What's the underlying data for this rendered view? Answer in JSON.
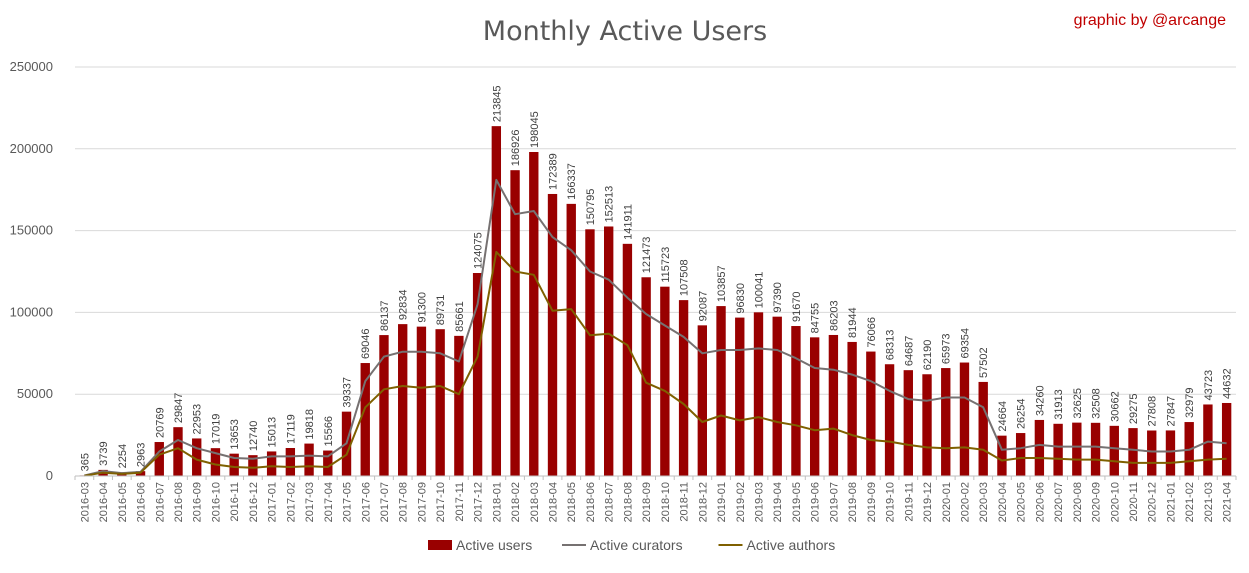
{
  "credit": "graphic by @arcange",
  "chart_data": {
    "type": "bar",
    "title": "Monthly Active Users",
    "xlabel": "",
    "ylabel": "",
    "ylim": [
      0,
      250000
    ],
    "yticks": [
      0,
      50000,
      100000,
      150000,
      200000,
      250000
    ],
    "ytick_labels": [
      "0",
      "50000",
      "100000",
      "150000",
      "200000",
      "250000"
    ],
    "grid": true,
    "legend_position": "bottom",
    "colors": {
      "Active users": "#990000",
      "Active curators": "#767171",
      "Active authors": "#7f6000"
    },
    "categories": [
      "2016-03",
      "2016-04",
      "2016-05",
      "2016-06",
      "2016-07",
      "2016-08",
      "2016-09",
      "2016-10",
      "2016-11",
      "2016-12",
      "2017-01",
      "2017-02",
      "2017-03",
      "2017-04",
      "2017-05",
      "2017-06",
      "2017-07",
      "2017-08",
      "2017-09",
      "2017-10",
      "2017-11",
      "2017-12",
      "2018-01",
      "2018-02",
      "2018-03",
      "2018-04",
      "2018-05",
      "2018-06",
      "2018-07",
      "2018-08",
      "2018-09",
      "2018-10",
      "2018-11",
      "2018-12",
      "2019-01",
      "2019-02",
      "2019-03",
      "2019-04",
      "2019-05",
      "2019-06",
      "2019-07",
      "2019-08",
      "2019-09",
      "2019-10",
      "2019-11",
      "2019-12",
      "2020-01",
      "2020-02",
      "2020-03",
      "2020-04",
      "2020-05",
      "2020-06",
      "2020-07",
      "2020-08",
      "2020-09",
      "2020-10",
      "2020-11",
      "2020-12",
      "2021-01",
      "2021-02",
      "2021-03",
      "2021-04"
    ],
    "series": [
      {
        "name": "Active users",
        "kind": "bar",
        "show_labels": true,
        "values": [
          365,
          3739,
          2254,
          2963,
          20769,
          29847,
          22953,
          17019,
          13653,
          12740,
          15013,
          17119,
          19818,
          15566,
          39337,
          69046,
          86137,
          92834,
          91300,
          89731,
          85661,
          124075,
          213845,
          186926,
          198045,
          172389,
          166337,
          150795,
          152513,
          141911,
          121473,
          115723,
          107508,
          92087,
          103857,
          96830,
          100041,
          97390,
          91670,
          84755,
          86203,
          81944,
          76066,
          68313,
          64687,
          62190,
          65973,
          69354,
          57502,
          24664,
          26254,
          34260,
          31913,
          32625,
          32508,
          30662,
          29275,
          27808,
          27847,
          32979,
          43723,
          44632
        ]
      },
      {
        "name": "Active curators",
        "kind": "line",
        "values": [
          300,
          3000,
          1800,
          2500,
          15000,
          22000,
          17000,
          14000,
          11000,
          10500,
          12000,
          12000,
          12500,
          12000,
          20000,
          58000,
          73000,
          76000,
          76000,
          75000,
          70000,
          105000,
          181000,
          160000,
          162000,
          146000,
          138000,
          125000,
          120000,
          109000,
          99000,
          92000,
          85000,
          75000,
          77000,
          77000,
          78000,
          77000,
          72000,
          66000,
          65000,
          62000,
          58000,
          52000,
          47000,
          46000,
          48000,
          48000,
          42000,
          16000,
          17000,
          19000,
          18000,
          18000,
          18000,
          17000,
          16000,
          15000,
          15000,
          16000,
          21000,
          20000
        ]
      },
      {
        "name": "Active authors",
        "kind": "line",
        "values": [
          200,
          2000,
          1300,
          2000,
          13000,
          17000,
          10000,
          7000,
          5500,
          5000,
          6000,
          5500,
          6000,
          5500,
          13000,
          42000,
          53000,
          55000,
          54000,
          55000,
          50000,
          73000,
          137000,
          125000,
          123000,
          101000,
          102000,
          86000,
          87000,
          80000,
          57000,
          52000,
          44000,
          33000,
          37000,
          34000,
          36000,
          33000,
          31000,
          28000,
          29000,
          25000,
          22000,
          21000,
          19000,
          17500,
          17000,
          17500,
          16000,
          9500,
          11000,
          11000,
          10500,
          10000,
          10000,
          9000,
          8000,
          8000,
          8000,
          9000,
          10000,
          10500
        ]
      }
    ]
  }
}
